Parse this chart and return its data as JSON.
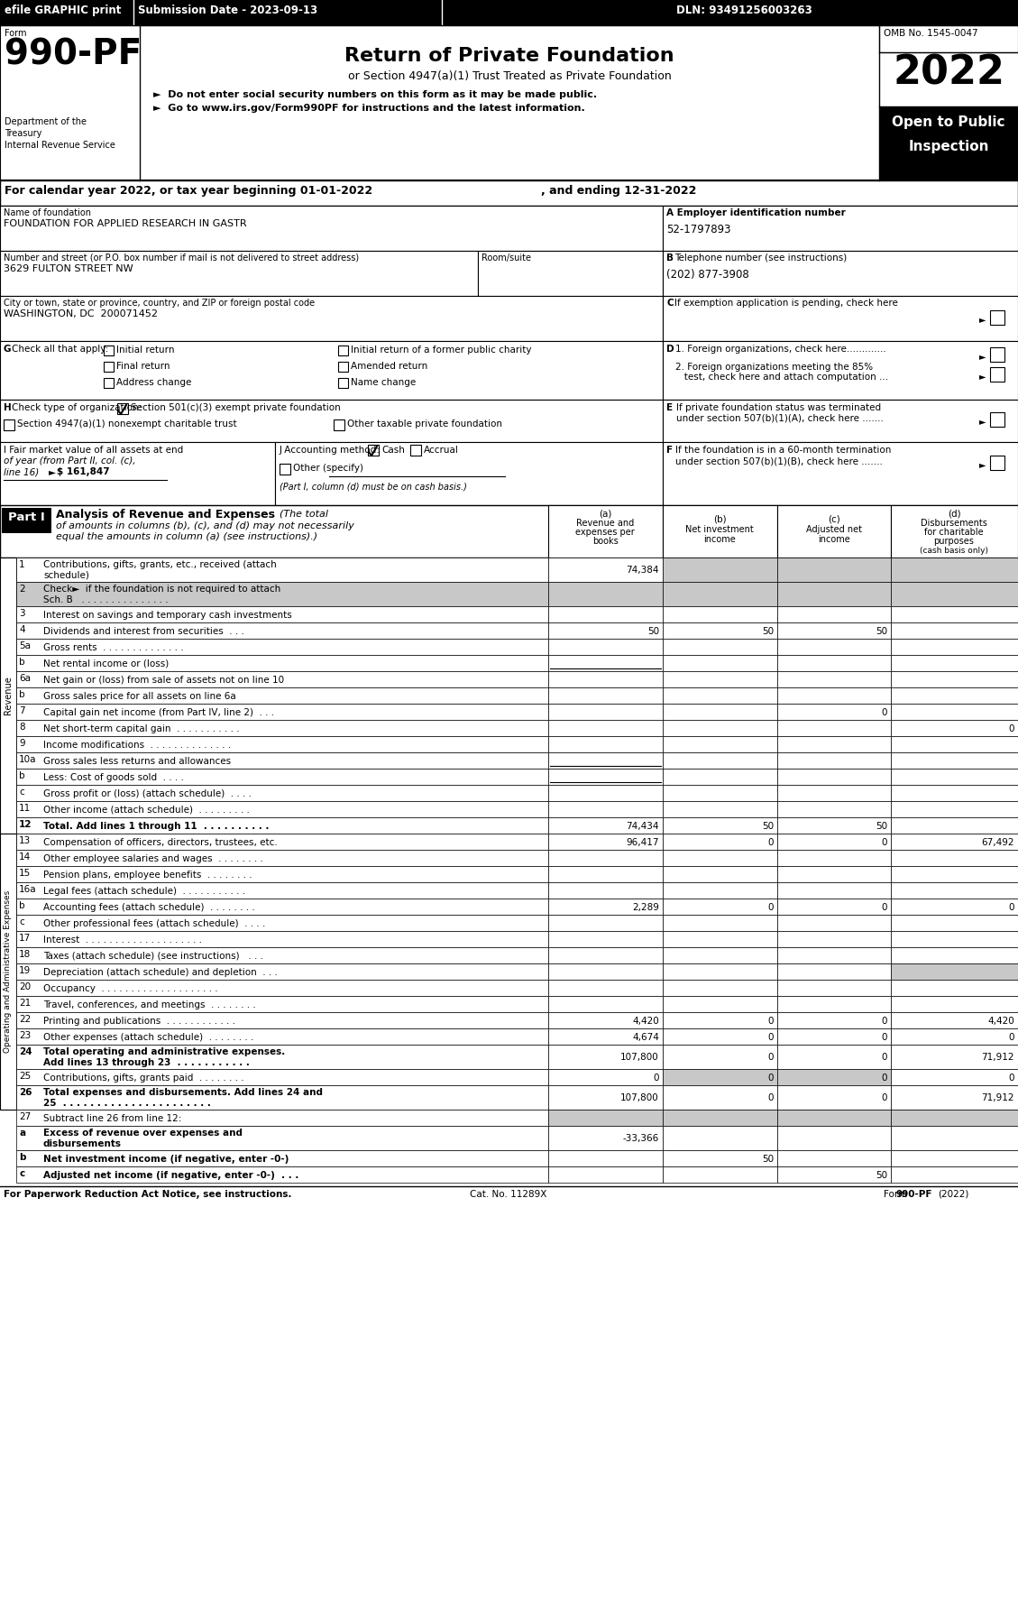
{
  "efile": "efile GRAPHIC print",
  "submission": "Submission Date - 2023-09-13",
  "dln": "DLN: 93491256003263",
  "form_number": "990-PF",
  "dept1": "Department of the",
  "dept2": "Treasury",
  "dept3": "Internal Revenue Service",
  "title": "Return of Private Foundation",
  "subtitle": "or Section 4947(a)(1) Trust Treated as Private Foundation",
  "bullet1": "►  Do not enter social security numbers on this form as it may be made public.",
  "bullet2": "►  Go to www.irs.gov/Form990PF for instructions and the latest information.",
  "year": "2022",
  "open_public": "Open to Public",
  "inspection": "Inspection",
  "omb": "OMB No. 1545-0047",
  "cal_year_line1": "For calendar year 2022, or tax year beginning 01-01-2022",
  "cal_year_line2": ", and ending 12-31-2022",
  "name_label": "Name of foundation",
  "name_value": "FOUNDATION FOR APPLIED RESEARCH IN GASTR",
  "ein_label": "A Employer identification number",
  "ein_value": "52-1797893",
  "address_label": "Number and street (or P.O. box number if mail is not delivered to street address)",
  "address_value": "3629 FULTON STREET NW",
  "room_label": "Room/suite",
  "phone_label_b": "B",
  "phone_label": "Telephone number (see instructions)",
  "phone_value": "(202) 877-3908",
  "city_label": "City or town, state or province, country, and ZIP or foreign postal code",
  "city_value": "WASHINGTON, DC  200071452",
  "c_bold": "C",
  "c_label": "If exemption application is pending, check here",
  "g_bold": "G",
  "g_label": "Check all that apply:",
  "g_options": [
    "Initial return",
    "Initial return of a former public charity",
    "Final return",
    "Amended return",
    "Address change",
    "Name change"
  ],
  "d_bold": "D",
  "d1_label": "1. Foreign organizations, check here.............",
  "d2_label1": "2. Foreign organizations meeting the 85%",
  "d2_label2": "   test, check here and attach computation ...",
  "e_bold": "E",
  "e_label1": "If private foundation status was terminated",
  "e_label2": "under section 507(b)(1)(A), check here .......",
  "h_bold": "H",
  "h_label": "Check type of organization:",
  "h_opt1": "Section 501(c)(3) exempt private foundation",
  "h_opt2": "Section 4947(a)(1) nonexempt charitable trust",
  "h_opt3": "Other taxable private foundation",
  "i_label1": "I Fair market value of all assets at end",
  "i_label2": "of year (from Part II, col. (c),",
  "i_label3": "line 16)",
  "i_arrow": "►",
  "i_value": "$ 161,847",
  "j_label": "J Accounting method:",
  "j_cash": "Cash",
  "j_accrual": "Accrual",
  "j_other": "Other (specify)",
  "j_note": "(Part I, column (d) must be on cash basis.)",
  "f_bold": "F",
  "f_label1": "If the foundation is in a 60-month termination",
  "f_label2": "under section 507(b)(1)(B), check here .......",
  "part1_label": "Part I",
  "part1_head": "Analysis of Revenue and Expenses",
  "part1_italic": "(The total",
  "part1_italic2": "of amounts in columns (b), (c), and (d) may not necessarily",
  "part1_italic3": "equal the amounts in column (a) (see instructions).)",
  "col_a_lbl": "(a)",
  "col_a1": "Revenue and",
  "col_a2": "expenses per",
  "col_a3": "books",
  "col_b_lbl": "(b)",
  "col_b1": "Net investment",
  "col_b2": "income",
  "col_c_lbl": "(c)",
  "col_c1": "Adjusted net",
  "col_c2": "income",
  "col_d_lbl": "(d)",
  "col_d1": "Disbursements",
  "col_d2": "for charitable",
  "col_d3": "purposes",
  "col_d4": "(cash basis only)",
  "rows": [
    {
      "num": "1",
      "label1": "Contributions, gifts, grants, etc., received (attach",
      "label2": "schedule)",
      "a": "74,384",
      "b": "",
      "c": "",
      "d": "",
      "shade_bcd": true,
      "shade_all": false,
      "bold": false
    },
    {
      "num": "2",
      "label1": "Check►  if the foundation is not required to attach",
      "label2": "Sch. B   . . . . . . . . . . . . . . .",
      "a": "",
      "b": "",
      "c": "",
      "d": "",
      "shade_bcd": true,
      "shade_all": true,
      "bold": false,
      "not_bold_part": "not"
    },
    {
      "num": "3",
      "label1": "Interest on savings and temporary cash investments",
      "label2": "",
      "a": "",
      "b": "",
      "c": "",
      "d": "",
      "shade_bcd": false,
      "shade_all": false,
      "bold": false
    },
    {
      "num": "4",
      "label1": "Dividends and interest from securities  . . .",
      "label2": "",
      "a": "50",
      "b": "50",
      "c": "50",
      "d": "",
      "shade_bcd": false,
      "shade_all": false,
      "bold": false
    },
    {
      "num": "5a",
      "label1": "Gross rents  . . . . . . . . . . . . . .",
      "label2": "",
      "a": "",
      "b": "",
      "c": "",
      "d": "",
      "shade_bcd": false,
      "shade_all": false,
      "bold": false
    },
    {
      "num": "b",
      "label1": "Net rental income or (loss)",
      "label2": "",
      "a": "",
      "b": null,
      "c": null,
      "d": null,
      "shade_bcd": false,
      "shade_all": false,
      "bold": false,
      "underline_a": true
    },
    {
      "num": "6a",
      "label1": "Net gain or (loss) from sale of assets not on line 10",
      "label2": "",
      "a": "",
      "b": "",
      "c": "",
      "d": "",
      "shade_bcd": false,
      "shade_all": false,
      "bold": false
    },
    {
      "num": "b",
      "label1": "Gross sales price for all assets on line 6a",
      "label2": "",
      "a": "",
      "b": null,
      "c": null,
      "d": null,
      "shade_bcd": false,
      "shade_all": false,
      "bold": false,
      "underline_label": true
    },
    {
      "num": "7",
      "label1": "Capital gain net income (from Part IV, line 2)  . . .",
      "label2": "",
      "a": "",
      "b": "",
      "c": "0",
      "d": "",
      "shade_bcd": false,
      "shade_all": false,
      "bold": false
    },
    {
      "num": "8",
      "label1": "Net short-term capital gain  . . . . . . . . . . .",
      "label2": "",
      "a": "",
      "b": "",
      "c": "",
      "d": "0",
      "shade_bcd": false,
      "shade_all": false,
      "bold": false
    },
    {
      "num": "9",
      "label1": "Income modifications  . . . . . . . . . . . . . .",
      "label2": "",
      "a": "",
      "b": "",
      "c": "",
      "d": "",
      "shade_bcd": false,
      "shade_all": false,
      "bold": false
    },
    {
      "num": "10a",
      "label1": "Gross sales less returns and allowances",
      "label2": "",
      "a": "",
      "b": null,
      "c": null,
      "d": null,
      "shade_bcd": false,
      "shade_all": false,
      "bold": false,
      "underline_a": true
    },
    {
      "num": "b",
      "label1": "Less: Cost of goods sold  . . . .",
      "label2": "",
      "a": "",
      "b": null,
      "c": null,
      "d": null,
      "shade_bcd": false,
      "shade_all": false,
      "bold": false,
      "underline_a": true
    },
    {
      "num": "c",
      "label1": "Gross profit or (loss) (attach schedule)  . . . .",
      "label2": "",
      "a": "",
      "b": "",
      "c": "",
      "d": "",
      "shade_bcd": false,
      "shade_all": false,
      "bold": false
    },
    {
      "num": "11",
      "label1": "Other income (attach schedule)  . . . . . . . . .",
      "label2": "",
      "a": "",
      "b": "",
      "c": "",
      "d": "",
      "shade_bcd": false,
      "shade_all": false,
      "bold": false
    },
    {
      "num": "12",
      "label1": "Total. Add lines 1 through 11  . . . . . . . . . .",
      "label2": "",
      "a": "74,434",
      "b": "50",
      "c": "50",
      "d": "",
      "shade_bcd": false,
      "shade_all": false,
      "bold": true
    },
    {
      "num": "13",
      "label1": "Compensation of officers, directors, trustees, etc.",
      "label2": "",
      "a": "96,417",
      "b": "0",
      "c": "0",
      "d": "67,492",
      "shade_bcd": false,
      "shade_all": false,
      "bold": false
    },
    {
      "num": "14",
      "label1": "Other employee salaries and wages  . . . . . . . .",
      "label2": "",
      "a": "",
      "b": "",
      "c": "",
      "d": "",
      "shade_bcd": false,
      "shade_all": false,
      "bold": false
    },
    {
      "num": "15",
      "label1": "Pension plans, employee benefits  . . . . . . . .",
      "label2": "",
      "a": "",
      "b": "",
      "c": "",
      "d": "",
      "shade_bcd": false,
      "shade_all": false,
      "bold": false
    },
    {
      "num": "16a",
      "label1": "Legal fees (attach schedule)  . . . . . . . . . . .",
      "label2": "",
      "a": "",
      "b": "",
      "c": "",
      "d": "",
      "shade_bcd": false,
      "shade_all": false,
      "bold": false
    },
    {
      "num": "b",
      "label1": "Accounting fees (attach schedule)  . . . . . . . .",
      "label2": "",
      "a": "2,289",
      "b": "0",
      "c": "0",
      "d": "0",
      "shade_bcd": false,
      "shade_all": false,
      "bold": false
    },
    {
      "num": "c",
      "label1": "Other professional fees (attach schedule)  . . . .",
      "label2": "",
      "a": "",
      "b": "",
      "c": "",
      "d": "",
      "shade_bcd": false,
      "shade_all": false,
      "bold": false
    },
    {
      "num": "17",
      "label1": "Interest  . . . . . . . . . . . . . . . . . . . .",
      "label2": "",
      "a": "",
      "b": "",
      "c": "",
      "d": "",
      "shade_bcd": false,
      "shade_all": false,
      "bold": false
    },
    {
      "num": "18",
      "label1": "Taxes (attach schedule) (see instructions)   . . .",
      "label2": "",
      "a": "",
      "b": "",
      "c": "",
      "d": "",
      "shade_bcd": false,
      "shade_all": false,
      "bold": false
    },
    {
      "num": "19",
      "label1": "Depreciation (attach schedule) and depletion  . . .",
      "label2": "",
      "a": "",
      "b": "",
      "c": "",
      "d": "",
      "shade_bcd": false,
      "shade_all": false,
      "bold": false,
      "shade_d": true
    },
    {
      "num": "20",
      "label1": "Occupancy  . . . . . . . . . . . . . . . . . . . .",
      "label2": "",
      "a": "",
      "b": "",
      "c": "",
      "d": "",
      "shade_bcd": false,
      "shade_all": false,
      "bold": false
    },
    {
      "num": "21",
      "label1": "Travel, conferences, and meetings  . . . . . . . .",
      "label2": "",
      "a": "",
      "b": "",
      "c": "",
      "d": "",
      "shade_bcd": false,
      "shade_all": false,
      "bold": false
    },
    {
      "num": "22",
      "label1": "Printing and publications  . . . . . . . . . . . .",
      "label2": "",
      "a": "4,420",
      "b": "0",
      "c": "0",
      "d": "4,420",
      "shade_bcd": false,
      "shade_all": false,
      "bold": false
    },
    {
      "num": "23",
      "label1": "Other expenses (attach schedule)  . . . . . . . .",
      "label2": "",
      "a": "4,674",
      "b": "0",
      "c": "0",
      "d": "0",
      "shade_bcd": false,
      "shade_all": false,
      "bold": false
    },
    {
      "num": "24",
      "label1": "Total operating and administrative expenses.",
      "label2": "Add lines 13 through 23  . . . . . . . . . . .",
      "a": "107,800",
      "b": "0",
      "c": "0",
      "d": "71,912",
      "shade_bcd": false,
      "shade_all": false,
      "bold": true
    },
    {
      "num": "25",
      "label1": "Contributions, gifts, grants paid  . . . . . . . .",
      "label2": "",
      "a": "0",
      "b": "0",
      "c": "0",
      "d": "0",
      "shade_bcd": false,
      "shade_all": false,
      "bold": false,
      "shade_bc": true
    },
    {
      "num": "26",
      "label1": "Total expenses and disbursements. Add lines 24 and",
      "label2": "25  . . . . . . . . . . . . . . . . . . . . . .",
      "a": "107,800",
      "b": "0",
      "c": "0",
      "d": "71,912",
      "shade_bcd": false,
      "shade_all": false,
      "bold": true
    },
    {
      "num": "27",
      "label1": "Subtract line 26 from line 12:",
      "label2": "",
      "a": "",
      "b": "",
      "c": "",
      "d": "",
      "shade_bcd": false,
      "shade_all": false,
      "bold": false,
      "shade_a": true,
      "shade_bcd_27": true,
      "is_27": true
    },
    {
      "num": "a",
      "label1": "Excess of revenue over expenses and",
      "label2": "disbursements",
      "a": "-33,366",
      "b": "",
      "c": "",
      "d": "",
      "shade_bcd": false,
      "shade_all": false,
      "bold": true
    },
    {
      "num": "b",
      "label1": "Net investment income (if negative, enter -0-)",
      "label2": "",
      "a": "",
      "b": "50",
      "c": "",
      "d": "",
      "shade_bcd": false,
      "shade_all": false,
      "bold": true
    },
    {
      "num": "c",
      "label1": "Adjusted net income (if negative, enter -0-)  . . .",
      "label2": "",
      "a": "",
      "b": "",
      "c": "50",
      "d": "",
      "shade_bcd": false,
      "shade_all": false,
      "bold": true
    }
  ],
  "revenue_label": "Revenue",
  "opex_label": "Operating and Administrative Expenses",
  "footer_left": "For Paperwork Reduction Act Notice, see instructions.",
  "footer_cat": "Cat. No. 11289X",
  "footer_form": "Form ",
  "footer_form_bold": "990-PF",
  "footer_year": "(2022)",
  "shaded": "#c8c8c8",
  "black": "#000000",
  "white": "#ffffff"
}
